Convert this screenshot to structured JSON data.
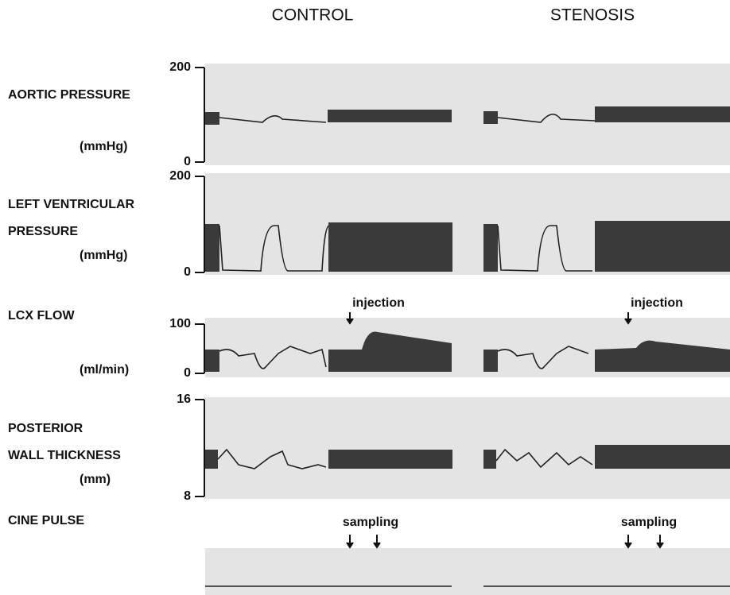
{
  "columns": [
    "CONTROL",
    "STENOSIS"
  ],
  "panels": [
    {
      "label": [
        "AORTIC PRESSURE"
      ],
      "unit": "(mmHg)",
      "ticks": [
        200,
        0
      ]
    },
    {
      "label": [
        "LEFT VENTRICULAR",
        "PRESSURE"
      ],
      "unit": "(mmHg)",
      "ticks": [
        200,
        0
      ]
    },
    {
      "label": [
        "LCX FLOW"
      ],
      "unit": "(ml/min)",
      "ticks": [
        100,
        0
      ]
    },
    {
      "label": [
        "POSTERIOR",
        "WALL THICKNESS"
      ],
      "unit": "(mm)",
      "ticks": [
        16,
        8
      ]
    },
    {
      "label": [
        "CINE PULSE"
      ]
    }
  ],
  "annotations": [
    "injection",
    "injection",
    "sampling",
    "sampling"
  ]
}
